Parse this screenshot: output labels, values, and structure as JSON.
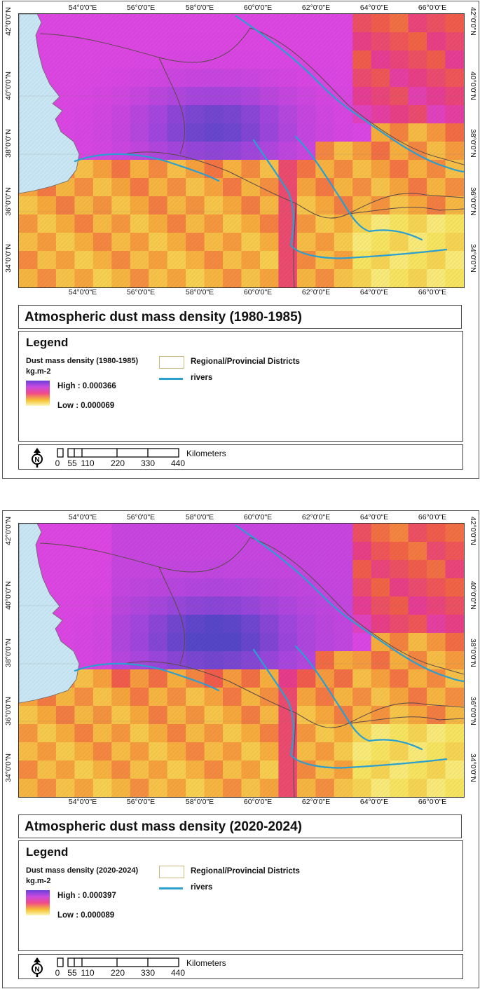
{
  "maps": [
    {
      "title": "Atmospheric dust mass density (1980-1985)",
      "lon_ticks": [
        "54°0'0\"E",
        "56°0'0\"E",
        "58°0'0\"E",
        "60°0'0\"E",
        "62°0'0\"E",
        "64°0'0\"E",
        "66°0'0\"E"
      ],
      "lat_ticks": [
        "42°0'0\"N",
        "40°0'0\"N",
        "38°0'0\"N",
        "36°0'0\"N",
        "34°0'0\"N"
      ],
      "legend": {
        "heading": "Legend",
        "layer": "Dust mass density (1980-1985)",
        "unit": "kg.m-2",
        "high": "High : 0.000366",
        "low": "Low : 0.000069",
        "districts": "Regional/Provincial Districts",
        "rivers": "rivers"
      },
      "scale": {
        "unit": "Kilometers",
        "labels": [
          "0",
          "55",
          "110",
          "220",
          "330",
          "440"
        ]
      },
      "north_symbol": "N"
    },
    {
      "title": "Atmospheric dust mass density (2020-2024)",
      "lon_ticks": [
        "54°0'0\"E",
        "56°0'0\"E",
        "58°0'0\"E",
        "60°0'0\"E",
        "62°0'0\"E",
        "64°0'0\"E",
        "66°0'0\"E"
      ],
      "lat_ticks": [
        "42°0'0\"N",
        "40°0'0\"N",
        "38°0'0\"N",
        "36°0'0\"N",
        "34°0'0\"N"
      ],
      "legend": {
        "heading": "Legend",
        "layer": "Dust mass density (2020-2024)",
        "unit": "kg.m-2",
        "high": "High : 0.000397",
        "low": "Low : 0.000089",
        "districts": "Regional/Provincial Districts",
        "rivers": "rivers"
      },
      "scale": {
        "unit": "Kilometers",
        "labels": [
          "0",
          "55",
          "110",
          "220",
          "330",
          "440"
        ]
      },
      "north_symbol": "N"
    }
  ],
  "colors": {
    "sea": "#c9e6f5",
    "river": "#2a9fd0",
    "boundary": "#5a4a4a",
    "ramp_high": "#5b3fd0",
    "ramp_low": "#fbf7b8"
  }
}
